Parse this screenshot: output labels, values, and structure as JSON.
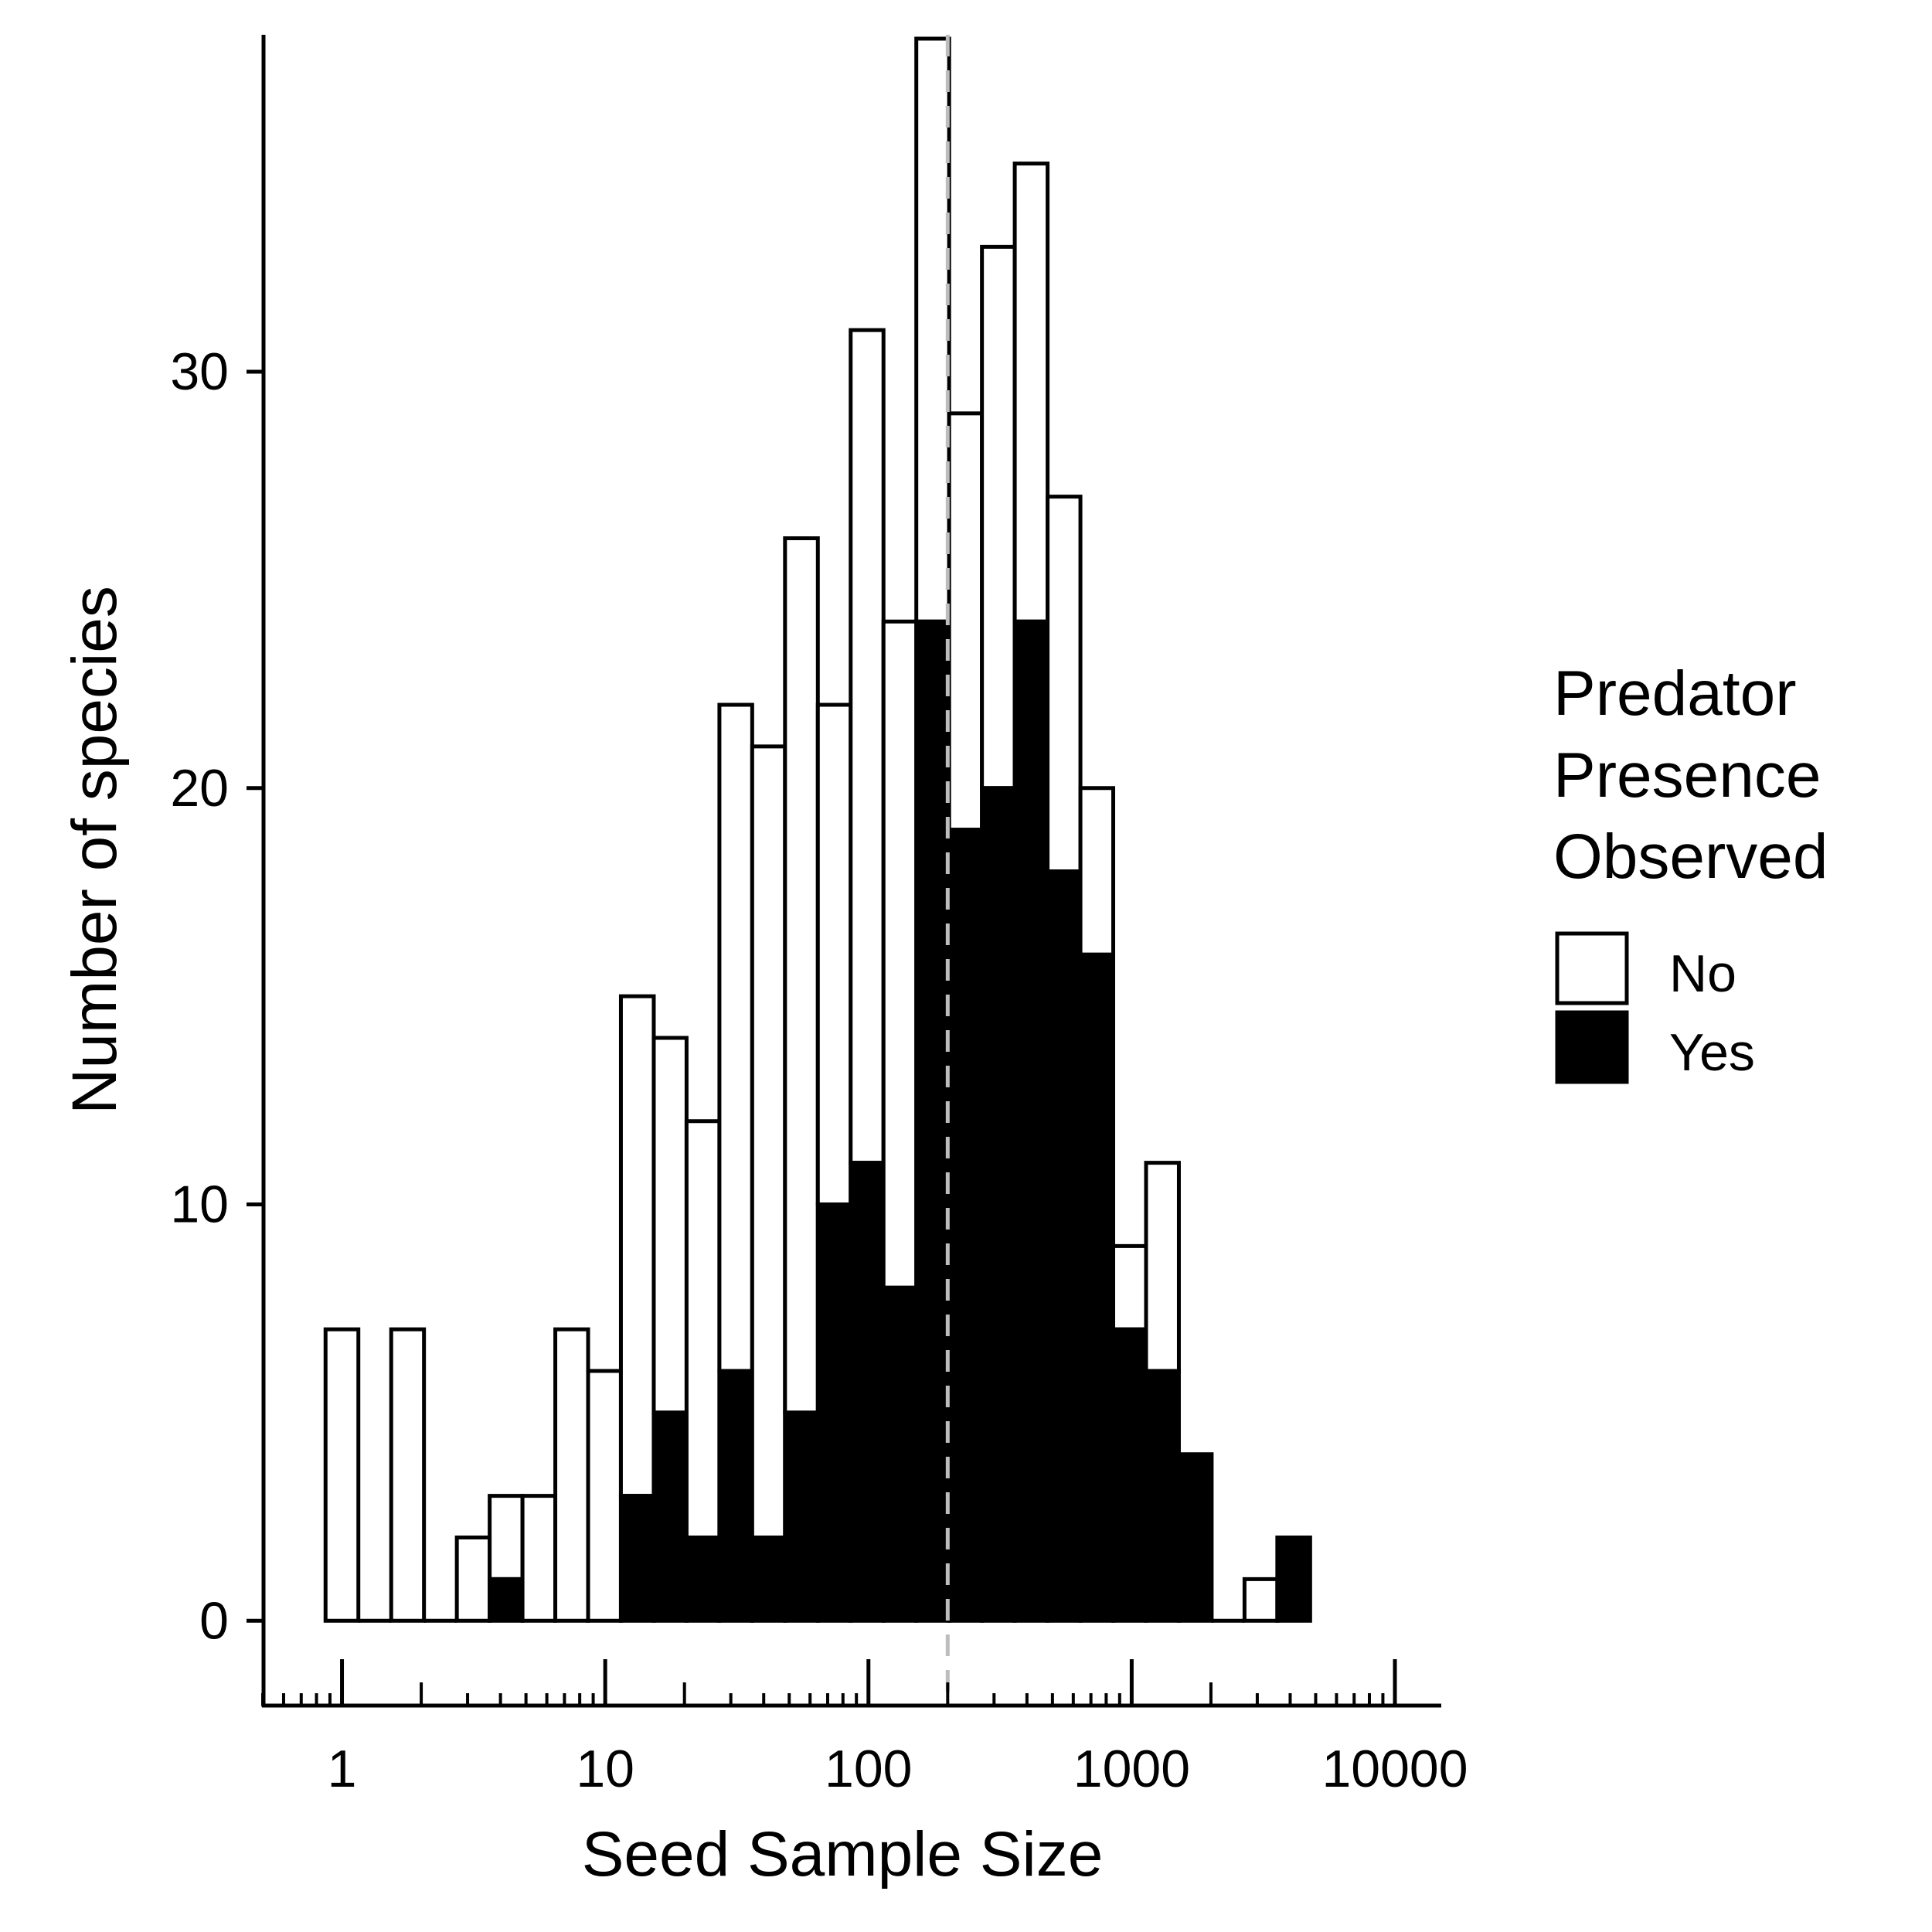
{
  "chart_data": {
    "type": "bar",
    "stacked": true,
    "x_scale": "log10",
    "xlabel": "Seed Sample Size",
    "ylabel": "Number of species",
    "xlim": [
      0.5,
      15000
    ],
    "ylim": [
      -2,
      38
    ],
    "x_ticks": [
      1,
      10,
      100,
      1000,
      10000
    ],
    "x_tick_labels": [
      "1",
      "10",
      "100",
      "1000",
      "10000"
    ],
    "y_ticks": [
      0,
      10,
      20,
      30
    ],
    "y_tick_labels": [
      "0",
      "10",
      "20",
      "30"
    ],
    "reference_line": {
      "x": 200,
      "style": "dashed",
      "color": "#bdbdbd"
    },
    "bins": [
      {
        "x_from": 0.866,
        "x_to": 1.154,
        "yes": 0,
        "total": 7
      },
      {
        "x_from": 1.154,
        "x_to": 1.538,
        "yes": 0,
        "total": 0
      },
      {
        "x_from": 1.538,
        "x_to": 2.049,
        "yes": 0,
        "total": 7
      },
      {
        "x_from": 2.049,
        "x_to": 2.731,
        "yes": 0,
        "total": 0
      },
      {
        "x_from": 2.731,
        "x_to": 3.639,
        "yes": 0,
        "total": 2
      },
      {
        "x_from": 3.639,
        "x_to": 4.849,
        "yes": 1,
        "total": 3
      },
      {
        "x_from": 4.849,
        "x_to": 6.462,
        "yes": 0,
        "total": 3
      },
      {
        "x_from": 6.462,
        "x_to": 8.61,
        "yes": 0,
        "total": 7
      },
      {
        "x_from": 8.61,
        "x_to": 11.47,
        "yes": 0,
        "total": 6
      },
      {
        "x_from": 11.47,
        "x_to": 15.29,
        "yes": 3,
        "total": 15
      },
      {
        "x_from": 15.29,
        "x_to": 20.37,
        "yes": 5,
        "total": 14
      },
      {
        "x_from": 20.37,
        "x_to": 27.15,
        "yes": 2,
        "total": 12
      },
      {
        "x_from": 27.15,
        "x_to": 36.17,
        "yes": 6,
        "total": 22
      },
      {
        "x_from": 36.17,
        "x_to": 48.2,
        "yes": 2,
        "total": 21
      },
      {
        "x_from": 48.2,
        "x_to": 64.23,
        "yes": 5,
        "total": 26
      },
      {
        "x_from": 64.23,
        "x_to": 85.59,
        "yes": 10,
        "total": 22
      },
      {
        "x_from": 85.59,
        "x_to": 114.05,
        "yes": 11,
        "total": 31
      },
      {
        "x_from": 114.05,
        "x_to": 151.98,
        "yes": 8,
        "total": 24
      },
      {
        "x_from": 151.98,
        "x_to": 202.52,
        "yes": 24,
        "total": 38
      },
      {
        "x_from": 202.52,
        "x_to": 269.87,
        "yes": 19,
        "total": 29
      },
      {
        "x_from": 269.87,
        "x_to": 359.6,
        "yes": 20,
        "total": 33
      },
      {
        "x_from": 359.6,
        "x_to": 479.2,
        "yes": 24,
        "total": 35
      },
      {
        "x_from": 479.2,
        "x_to": 638.6,
        "yes": 18,
        "total": 27
      },
      {
        "x_from": 638.6,
        "x_to": 850.9,
        "yes": 16,
        "total": 20
      },
      {
        "x_from": 850.9,
        "x_to": 1134,
        "yes": 7,
        "total": 9
      },
      {
        "x_from": 1134,
        "x_to": 1511,
        "yes": 6,
        "total": 11
      },
      {
        "x_from": 1511,
        "x_to": 2013,
        "yes": 4,
        "total": 4
      },
      {
        "x_from": 2013,
        "x_to": 2683,
        "yes": 0,
        "total": 0
      },
      {
        "x_from": 2683,
        "x_to": 3575,
        "yes": 0,
        "total": 1
      },
      {
        "x_from": 3575,
        "x_to": 4764,
        "yes": 2,
        "total": 2
      }
    ],
    "legend": {
      "title_lines": [
        "Predator",
        "Presence",
        "Observed"
      ],
      "entries": [
        {
          "label": "No",
          "color": "#ffffff"
        },
        {
          "label": "Yes",
          "color": "#000000"
        }
      ],
      "placement": "right"
    }
  }
}
